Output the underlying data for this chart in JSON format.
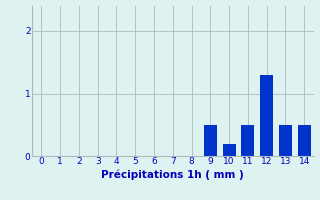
{
  "x_values": [
    0,
    1,
    2,
    3,
    4,
    5,
    6,
    7,
    8,
    9,
    10,
    11,
    12,
    13,
    14
  ],
  "bar_values": [
    0,
    0,
    0,
    0,
    0,
    0,
    0,
    0,
    0,
    0.5,
    0.2,
    0.5,
    1.3,
    0.5,
    0.5
  ],
  "bar_color": "#0033cc",
  "background_color": "#dff2f2",
  "grid_color": "#aabbbb",
  "xlabel": "Précipitations 1h ( mm )",
  "xlabel_color": "#0000bb",
  "tick_color": "#0000bb",
  "ylim": [
    0,
    2.4
  ],
  "yticks": [
    0,
    1,
    2
  ],
  "xlim": [
    -0.5,
    14.5
  ],
  "xticks": [
    0,
    1,
    2,
    3,
    4,
    5,
    6,
    7,
    8,
    9,
    10,
    11,
    12,
    13,
    14
  ],
  "bar_width": 0.7,
  "figsize": [
    3.2,
    2.0
  ],
  "dpi": 100
}
